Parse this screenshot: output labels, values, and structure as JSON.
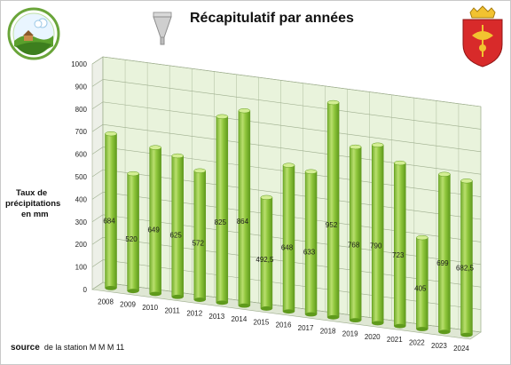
{
  "header": {
    "title": "Récapitulatif par années",
    "logo_icon": "rural-landscape-logo-icon",
    "funnel_icon": "rain-gauge-funnel-icon",
    "crest_icon": "town-coat-of-arms-icon"
  },
  "axis": {
    "ylabel_line1": "Taux de",
    "ylabel_line2": "précipitations",
    "ylabel_line3": "en  mm"
  },
  "footer": {
    "source_label": "source",
    "source_text": "de la station M M M  11"
  },
  "chart_data": {
    "type": "bar",
    "style": "3d-cylinder",
    "categories": [
      "2008",
      "2009",
      "2010",
      "2011",
      "2012",
      "2013",
      "2014",
      "2015",
      "2016",
      "2017",
      "2018",
      "2019",
      "2020",
      "2021",
      "2022",
      "2023",
      "2024"
    ],
    "values": [
      684,
      520,
      649,
      625,
      572,
      825,
      864,
      492.5,
      648,
      633,
      952,
      768,
      790,
      723,
      405,
      699,
      682.5
    ],
    "data_labels": [
      "684",
      "520",
      "649",
      "625",
      "572",
      "825",
      "864",
      "492,5",
      "648",
      "633",
      "952",
      "768",
      "790",
      "723",
      "405",
      "699",
      "682,5"
    ],
    "title": "Récapitulatif par années",
    "ylabel": "Taux de précipitations en mm",
    "xlabel": "",
    "ylim": [
      0,
      1000
    ],
    "yticks": [
      0,
      100,
      200,
      300,
      400,
      500,
      600,
      700,
      800,
      900,
      1000
    ],
    "grid": true,
    "legend": "none",
    "colors": {
      "bar_front": "#8fc63c",
      "bar_light": "#c4e47e",
      "bar_dark": "#5f9a1c",
      "bar_top": "#d3ee93",
      "back_wall": "#e9f3dc",
      "floor": "#dfe7d4",
      "side_wall": "#edf0e8",
      "grid": "#9eae8e"
    }
  }
}
